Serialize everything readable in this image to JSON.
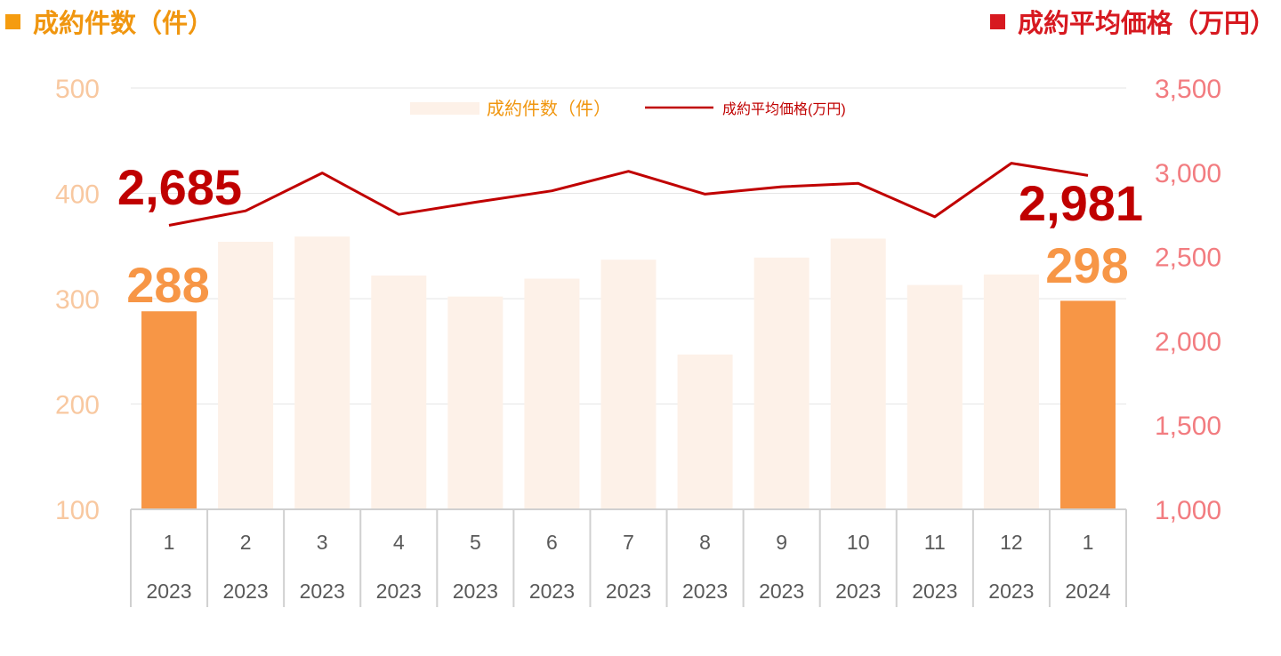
{
  "header": {
    "left_title": "成約件数（件）",
    "right_title": "成約平均価格（万円）"
  },
  "legend": {
    "bar_label": "成約件数（件）",
    "line_label": "成約平均価格(万円)"
  },
  "colors": {
    "bar_highlight": "#f79646",
    "bar_normal": "#fdf1e8",
    "line": "#c00000",
    "left_axis": "#f8c8a0",
    "right_axis": "#f27c80",
    "left_title": "#f0960f",
    "right_title": "#d71920"
  },
  "callouts": {
    "first_count": "288",
    "last_count": "298",
    "first_price": "2,685",
    "last_price": "2,981"
  },
  "chart_data": {
    "type": "bar",
    "categories": [
      {
        "month": "1",
        "year": "2023"
      },
      {
        "month": "2",
        "year": "2023"
      },
      {
        "month": "3",
        "year": "2023"
      },
      {
        "month": "4",
        "year": "2023"
      },
      {
        "month": "5",
        "year": "2023"
      },
      {
        "month": "6",
        "year": "2023"
      },
      {
        "month": "7",
        "year": "2023"
      },
      {
        "month": "8",
        "year": "2023"
      },
      {
        "month": "9",
        "year": "2023"
      },
      {
        "month": "10",
        "year": "2023"
      },
      {
        "month": "11",
        "year": "2023"
      },
      {
        "month": "12",
        "year": "2023"
      },
      {
        "month": "1",
        "year": "2024"
      }
    ],
    "series": [
      {
        "name": "成約件数（件）",
        "type": "bar",
        "axis": "left",
        "values": [
          288,
          354,
          359,
          322,
          302,
          319,
          337,
          247,
          339,
          357,
          313,
          323,
          298
        ],
        "highlight": [
          true,
          false,
          false,
          false,
          false,
          false,
          false,
          false,
          false,
          false,
          false,
          false,
          true
        ]
      },
      {
        "name": "成約平均価格(万円)",
        "type": "line",
        "axis": "right",
        "values": [
          2685,
          2771,
          2996,
          2750,
          2822,
          2890,
          3006,
          2870,
          2914,
          2934,
          2736,
          3054,
          2981
        ]
      }
    ],
    "y_left": {
      "min": 100,
      "max": 500,
      "ticks": [
        "100",
        "200",
        "300",
        "400",
        "500"
      ]
    },
    "y_right": {
      "min": 1000,
      "max": 3500,
      "ticks": [
        "1,000",
        "1,500",
        "2,000",
        "2,500",
        "3,000",
        "3,500"
      ]
    },
    "grid": true,
    "legend_position": "top-center"
  }
}
